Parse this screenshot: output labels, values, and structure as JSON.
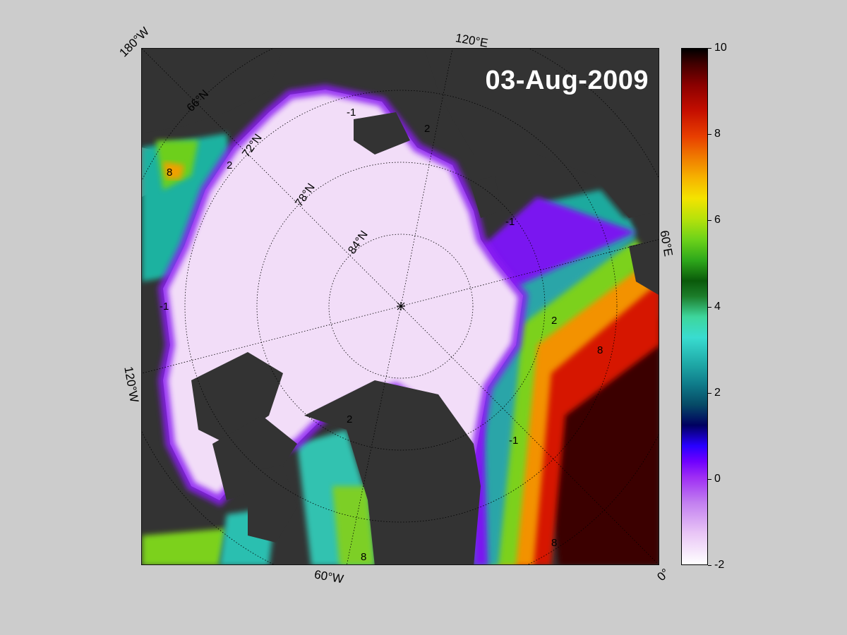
{
  "map": {
    "date": "03-Aug-2009",
    "contour_labels": [
      "-1",
      "2",
      "8"
    ],
    "edge_labels": {
      "lon_180w": "180°W",
      "lon_120e": "120°E",
      "lon_60e": "60°E",
      "lon_0": "0°",
      "lon_60w": "60°W",
      "lon_120w": "120°W",
      "lat_66n": "66°N",
      "lat_72n": "72°N",
      "lat_78n": "78°N",
      "lat_84n": "84°N"
    },
    "colors": {
      "land": "#333333",
      "land_shadow": "#808080",
      "ice": "#f3dcf8",
      "page": "#cccccc"
    }
  },
  "colorbar": {
    "min": -2,
    "max": 10,
    "ticks": [
      "10",
      "8",
      "6",
      "4",
      "2",
      "0",
      "-2"
    ]
  }
}
